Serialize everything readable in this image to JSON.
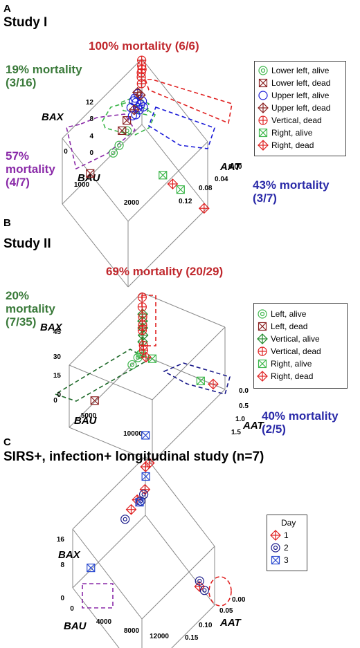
{
  "panels": [
    {
      "letter": "A",
      "title": "Study I",
      "annotations": [
        {
          "text": "100% mortality (6/6)",
          "color": "#c0282d"
        },
        {
          "text": "19% mortality\n(3/16)",
          "color": "#3a7a3a"
        },
        {
          "text": "57%\nmortality\n(4/7)",
          "color": "#8a2aa8"
        },
        {
          "text": "43% mortality\n(3/7)",
          "color": "#2a2aa8"
        }
      ],
      "legend": {
        "title": "",
        "entries": [
          {
            "label": "Lower left, alive",
            "marker": "circle-dot",
            "color": "#3cb64a"
          },
          {
            "label": "Lower left, dead",
            "marker": "box-x",
            "color": "#8b2323"
          },
          {
            "label": "Upper left, alive",
            "marker": "circle",
            "color": "#1a1ad8"
          },
          {
            "label": "Upper left, dead",
            "marker": "diamond-plus",
            "color": "#8b2323"
          },
          {
            "label": "Vertical, dead",
            "marker": "circle-plus",
            "color": "#e02020"
          },
          {
            "label": "Right, alive",
            "marker": "box-x",
            "color": "#3cb64a"
          },
          {
            "label": "Right, dead",
            "marker": "diamond-plus",
            "color": "#e02020"
          }
        ]
      }
    },
    {
      "letter": "B",
      "title": "Study II",
      "annotations": [
        {
          "text": "69% mortality (20/29)",
          "color": "#c0282d"
        },
        {
          "text": "20%\nmortality\n(7/35)",
          "color": "#3a7a3a"
        },
        {
          "text": "40% mortality\n(2/5)",
          "color": "#2a2aa8"
        }
      ],
      "legend": {
        "title": "",
        "entries": [
          {
            "label": "Left, alive",
            "marker": "circle-dot",
            "color": "#3cb64a"
          },
          {
            "label": "Left, dead",
            "marker": "box-x",
            "color": "#8b2323"
          },
          {
            "label": "Vertical, alive",
            "marker": "diamond-plus",
            "color": "#1f8a2a"
          },
          {
            "label": "Vertical, dead",
            "marker": "circle-plus",
            "color": "#e02020"
          },
          {
            "label": "Right, alive",
            "marker": "box-x",
            "color": "#3cb64a"
          },
          {
            "label": "Right, dead",
            "marker": "diamond-plus",
            "color": "#e02020"
          }
        ]
      }
    },
    {
      "letter": "C",
      "title": "SIRS+, infection+ longitudinal study (n=7)",
      "annotations": [],
      "legend": {
        "title": "Day",
        "entries": [
          {
            "label": "1",
            "marker": "diamond-plus",
            "color": "#e02020"
          },
          {
            "label": "2",
            "marker": "circle-dot",
            "color": "#1a1a8a"
          },
          {
            "label": "3",
            "marker": "box-x",
            "color": "#2a4ad0"
          }
        ]
      }
    }
  ],
  "chart_data": [
    {
      "type": "scatter",
      "title": "Study I",
      "axes": {
        "BAX": {
          "label": "BAX",
          "ticks": [
            "0",
            "4",
            "8",
            "12"
          ],
          "range": [
            0,
            12
          ]
        },
        "BAU": {
          "label": "BAU",
          "ticks": [
            "0",
            "1000",
            "2000"
          ],
          "range": [
            0,
            2000
          ]
        },
        "AAT": {
          "label": "AAT",
          "ticks": [
            "0.00",
            "0.04",
            "0.08",
            "0.12"
          ],
          "range": [
            0,
            0.12
          ]
        }
      },
      "series": [
        {
          "name": "Lower left, alive",
          "points": [
            {
              "BAU": 600,
              "AAT": 0.002,
              "BAX": 0.8
            },
            {
              "BAU": 750,
              "AAT": 0.002,
              "BAX": 0.5
            },
            {
              "BAU": 400,
              "AAT": 0.002,
              "BAX": 2.0
            }
          ]
        },
        {
          "name": "Lower left, dead",
          "points": [
            {
              "BAU": 1300,
              "AAT": 0,
              "BAX": 0.5
            },
            {
              "BAU": 500,
              "AAT": 0,
              "BAX": 2.5
            },
            {
              "BAU": 380,
              "AAT": 0,
              "BAX": 3.5
            }
          ]
        },
        {
          "name": "Upper left, alive",
          "points": [
            {
              "BAU": 200,
              "AAT": 0.004,
              "BAX": 6
            },
            {
              "BAU": 180,
              "AAT": 0.005,
              "BAX": 5
            },
            {
              "BAU": 230,
              "AAT": 0.004,
              "BAX": 7
            },
            {
              "BAU": 150,
              "AAT": 0.006,
              "BAX": 4.5
            },
            {
              "BAU": 250,
              "AAT": 0.003,
              "BAX": 6.5
            },
            {
              "BAU": 130,
              "AAT": 0.007,
              "BAX": 5.5
            },
            {
              "BAU": 210,
              "AAT": 0.004,
              "BAX": 3.8
            },
            {
              "BAU": 100,
              "AAT": 0.008,
              "BAX": 6
            },
            {
              "BAU": 280,
              "AAT": 0.003,
              "BAX": 4
            },
            {
              "BAU": 170,
              "AAT": 0.005,
              "BAX": 7.5
            },
            {
              "BAU": 90,
              "AAT": 0.009,
              "BAX": 5
            },
            {
              "BAU": 300,
              "AAT": 0.002,
              "BAX": 5.5
            }
          ]
        },
        {
          "name": "Upper left, dead",
          "points": [
            {
              "BAU": 120,
              "AAT": 0.006,
              "BAX": 7
            },
            {
              "BAU": 250,
              "AAT": 0.004,
              "BAX": 5
            },
            {
              "BAU": 190,
              "AAT": 0.006,
              "BAX": 8
            }
          ]
        },
        {
          "name": "Vertical, dead",
          "points": [
            {
              "BAU": 20,
              "AAT": 0.001,
              "BAX": 12
            },
            {
              "BAU": 25,
              "AAT": 0.002,
              "BAX": 10.5
            },
            {
              "BAU": 30,
              "AAT": 0.001,
              "BAX": 9
            },
            {
              "BAU": 40,
              "AAT": 0.002,
              "BAX": 8
            },
            {
              "BAU": 20,
              "AAT": 0.001,
              "BAX": 11
            },
            {
              "BAU": 30,
              "AAT": 0.001,
              "BAX": 9.8
            }
          ]
        },
        {
          "name": "Right, alive",
          "points": [
            {
              "BAU": 300,
              "AAT": 0.06,
              "BAX": 0.5
            },
            {
              "BAU": 200,
              "AAT": 0.085,
              "BAX": 0.3
            }
          ]
        },
        {
          "name": "Right, dead",
          "points": [
            {
              "BAU": 260,
              "AAT": 0.075,
              "BAX": 0.5
            },
            {
              "BAU": 90,
              "AAT": 0.12,
              "BAX": 0.5
            }
          ]
        }
      ]
    },
    {
      "type": "scatter",
      "title": "Study II",
      "axes": {
        "BAX": {
          "label": "BAX",
          "ticks": [
            "0",
            "15",
            "30",
            "45"
          ],
          "range": [
            0,
            45
          ]
        },
        "BAU": {
          "label": "BAU",
          "ticks": [
            "0",
            "5000",
            "10000"
          ],
          "range": [
            0,
            10000
          ]
        },
        "AAT": {
          "label": "AAT",
          "ticks": [
            "0.0",
            "0.5",
            "1.0",
            "1.5"
          ],
          "range": [
            0,
            1.5
          ]
        }
      },
      "series": [
        {
          "name": "Left, alive",
          "points": [
            {
              "BAU": 1500,
              "AAT": 0.02,
              "BAX": 1
            },
            {
              "BAU": 700,
              "AAT": 0.02,
              "BAX": 2
            },
            {
              "BAU": 400,
              "AAT": 0.03,
              "BAX": 3
            },
            {
              "BAU": 250,
              "AAT": 0.03,
              "BAX": 2.5
            }
          ]
        },
        {
          "name": "Left, dead",
          "points": [
            {
              "BAU": 6500,
              "AAT": 0,
              "BAX": 1
            }
          ]
        },
        {
          "name": "Vertical, alive",
          "points": [
            {
              "BAU": 50,
              "AAT": 0.02,
              "BAX": 30
            },
            {
              "BAU": 60,
              "AAT": 0.02,
              "BAX": 25
            },
            {
              "BAU": 40,
              "AAT": 0.02,
              "BAX": 20
            },
            {
              "BAU": 70,
              "AAT": 0.03,
              "BAX": 15
            },
            {
              "BAU": 50,
              "AAT": 0.02,
              "BAX": 10
            }
          ]
        },
        {
          "name": "Vertical, dead",
          "points": [
            {
              "BAU": 40,
              "AAT": 0.01,
              "BAX": 42
            },
            {
              "BAU": 40,
              "AAT": 0.01,
              "BAX": 35
            },
            {
              "BAU": 50,
              "AAT": 0.02,
              "BAX": 28
            },
            {
              "BAU": 60,
              "AAT": 0.02,
              "BAX": 22
            },
            {
              "BAU": 30,
              "AAT": 0.01,
              "BAX": 18
            },
            {
              "BAU": 100,
              "AAT": 0.04,
              "BAX": 8
            },
            {
              "BAU": 150,
              "AAT": 0.05,
              "BAX": 5
            }
          ]
        },
        {
          "name": "Right, alive",
          "points": [
            {
              "BAU": 100,
              "AAT": 0.2,
              "BAX": 1
            },
            {
              "BAU": 300,
              "AAT": 1.1,
              "BAX": 1
            }
          ]
        },
        {
          "name": "Right, dead",
          "points": [
            {
              "BAU": 200,
              "AAT": 0.1,
              "BAX": 1
            },
            {
              "BAU": 100,
              "AAT": 1.3,
              "BAX": 1
            }
          ]
        }
      ]
    },
    {
      "type": "scatter",
      "title": "SIRS+, infection+ longitudinal study (n=7)",
      "axes": {
        "BAX": {
          "label": "BAX",
          "ticks": [
            "0",
            "8",
            "16"
          ],
          "range": [
            0,
            16
          ]
        },
        "BAU": {
          "label": "BAU",
          "ticks": [
            "0",
            "4000",
            "8000",
            "12000"
          ],
          "range": [
            0,
            12000
          ]
        },
        "AAT": {
          "label": "AAT",
          "ticks": [
            "0.00",
            "0.05",
            "0.10",
            "0.15"
          ],
          "range": [
            0,
            0.15
          ]
        }
      },
      "series": [
        {
          "name": "1",
          "points": [
            {
              "BAU": 200,
              "AAT": 0.003,
              "BAX": 14
            },
            {
              "BAU": 100,
              "AAT": 0.01,
              "BAX": 16
            },
            {
              "BAU": 300,
              "AAT": 0.003,
              "BAX": 8
            },
            {
              "BAU": 2500,
              "AAT": 0.002,
              "BAX": 6
            },
            {
              "BAU": 1500,
              "AAT": 0.002,
              "BAX": 7
            },
            {
              "BAU": 200,
              "AAT": 0.12,
              "BAX": 0.5
            }
          ]
        },
        {
          "name": "2",
          "points": [
            {
              "BAU": 3500,
              "AAT": 0.002,
              "BAX": 5
            },
            {
              "BAU": 1000,
              "AAT": 0.003,
              "BAX": 6
            },
            {
              "BAU": 500,
              "AAT": 0.003,
              "BAX": 7
            },
            {
              "BAU": 200,
              "AAT": 0.12,
              "BAX": 2
            },
            {
              "BAU": 150,
              "AAT": 0.13,
              "BAX": 1
            }
          ]
        },
        {
          "name": "3",
          "points": [
            {
              "BAU": 50,
              "AAT": 0.001,
              "BAX": 22
            },
            {
              "BAU": 80,
              "AAT": 0.002,
              "BAX": 11
            },
            {
              "BAU": 1200,
              "AAT": 0.003,
              "BAX": 6
            },
            {
              "BAU": 9000,
              "AAT": 0,
              "BAX": 0.5
            }
          ]
        }
      ]
    }
  ]
}
